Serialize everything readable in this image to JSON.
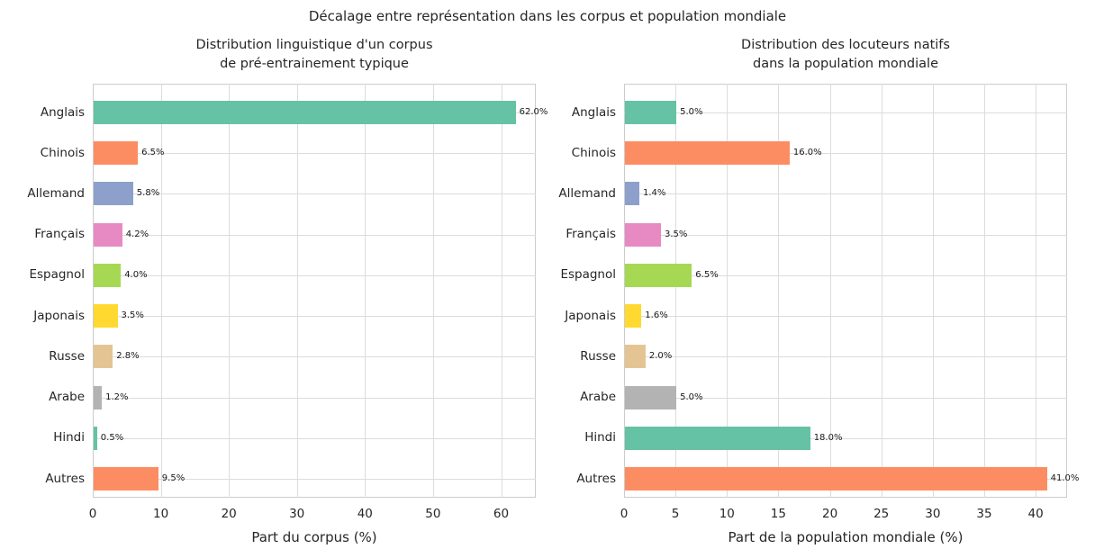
{
  "figure": {
    "suptitle": "Décalage entre représentation dans les corpus et population mondiale",
    "background": "#ffffff",
    "text_color": "#262626",
    "grid_color": "#dcdcdc",
    "spine_color": "#cccccc"
  },
  "palette_set2": [
    "#66c2a5",
    "#fc8d62",
    "#8da0cb",
    "#e78ac3",
    "#a6d854",
    "#ffd92f",
    "#e5c494",
    "#b3b3b3"
  ],
  "chart_data": [
    {
      "type": "bar",
      "orientation": "horizontal",
      "title": "Distribution linguistique d'un corpus\nde pré-entrainement typique",
      "title_lines": [
        "Distribution linguistique d'un corpus",
        "de pré-entrainement typique"
      ],
      "categories": [
        "Anglais",
        "Chinois",
        "Allemand",
        "Français",
        "Espagnol",
        "Japonais",
        "Russe",
        "Arabe",
        "Hindi",
        "Autres"
      ],
      "values": [
        62.0,
        6.5,
        5.8,
        4.2,
        4.0,
        3.5,
        2.8,
        1.2,
        0.5,
        9.5
      ],
      "value_labels": [
        "62.0%",
        "6.5%",
        "5.8%",
        "4.2%",
        "4.0%",
        "3.5%",
        "2.8%",
        "1.2%",
        "0.5%",
        "9.5%"
      ],
      "bar_colors": [
        "#66c2a5",
        "#fc8d62",
        "#8da0cb",
        "#e78ac3",
        "#a6d854",
        "#ffd92f",
        "#e5c494",
        "#b3b3b3",
        "#66c2a5",
        "#fc8d62"
      ],
      "xlabel": "Part du corpus (%)",
      "ylabel": "",
      "xlim": [
        0,
        65.1
      ],
      "xticks": [
        0,
        10,
        20,
        30,
        40,
        50,
        60
      ],
      "grid": true,
      "legend": false
    },
    {
      "type": "bar",
      "orientation": "horizontal",
      "title": "Distribution des locuteurs natifs\ndans la population mondiale",
      "title_lines": [
        "Distribution des locuteurs natifs",
        "dans la population mondiale"
      ],
      "categories": [
        "Anglais",
        "Chinois",
        "Allemand",
        "Français",
        "Espagnol",
        "Japonais",
        "Russe",
        "Arabe",
        "Hindi",
        "Autres"
      ],
      "values": [
        5.0,
        16.0,
        1.4,
        3.5,
        6.5,
        1.6,
        2.0,
        5.0,
        18.0,
        41.0
      ],
      "value_labels": [
        "5.0%",
        "16.0%",
        "1.4%",
        "3.5%",
        "6.5%",
        "1.6%",
        "2.0%",
        "5.0%",
        "18.0%",
        "41.0%"
      ],
      "bar_colors": [
        "#66c2a5",
        "#fc8d62",
        "#8da0cb",
        "#e78ac3",
        "#a6d854",
        "#ffd92f",
        "#e5c494",
        "#b3b3b3",
        "#66c2a5",
        "#fc8d62"
      ],
      "xlabel": "Part de la population mondiale (%)",
      "ylabel": "",
      "xlim": [
        0,
        43.05
      ],
      "xticks": [
        0,
        5,
        10,
        15,
        20,
        25,
        30,
        35,
        40
      ],
      "grid": true,
      "legend": false
    }
  ]
}
